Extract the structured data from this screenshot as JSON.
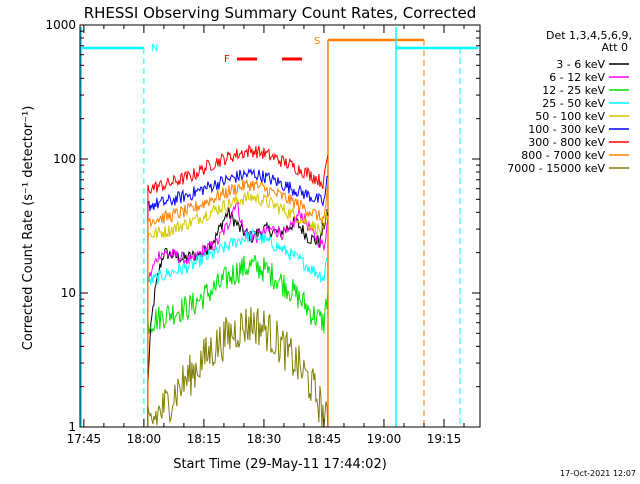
{
  "chart_data": {
    "type": "line",
    "title": "RHESSI Observing Summary Count Rates, Corrected",
    "xlabel": "Start Time (29-May-11 17:44:02)",
    "ylabel": "Corrected Count Rate (s⁻¹ detector⁻¹)",
    "x_scale": "time",
    "y_scale": "log",
    "xlim": [
      "17:44:02",
      "19:24:00"
    ],
    "ylim": [
      1,
      1000
    ],
    "x_ticks": [
      "17:45",
      "18:00",
      "18:15",
      "18:30",
      "18:45",
      "19:00",
      "19:15"
    ],
    "y_ticks": [
      "1",
      "10",
      "100",
      "1000"
    ],
    "legend": {
      "position": "right",
      "header": [
        "Det 1,3,4,5,6,9,",
        "Att 0"
      ]
    },
    "annotations": {
      "night_label": "N",
      "flare_label": "F",
      "saa_label": "S"
    },
    "footer_text": "17-Oct-2021 12:07",
    "series": [
      {
        "name": "3 - 6 keV",
        "color": "#000000",
        "x": [
          "18:01",
          "18:05",
          "18:10",
          "18:15",
          "18:18",
          "18:21",
          "18:24",
          "18:27",
          "18:30",
          "18:34",
          "18:38",
          "18:41",
          "18:44",
          "18:46"
        ],
        "y": [
          2,
          20,
          18,
          20,
          26,
          40,
          30,
          26,
          30,
          28,
          34,
          26,
          24,
          40
        ]
      },
      {
        "name": "6 - 12 keV",
        "color": "#ff00ff",
        "x": [
          "18:01",
          "18:04",
          "18:08",
          "18:12",
          "18:15",
          "18:18",
          "18:21",
          "18:23",
          "18:25",
          "18:28",
          "18:32",
          "18:36",
          "18:39",
          "18:42",
          "18:45",
          "18:46"
        ],
        "y": [
          12,
          20,
          19,
          17,
          21,
          23,
          32,
          48,
          28,
          26,
          30,
          27,
          40,
          28,
          22,
          35
        ]
      },
      {
        "name": "12 - 25 keV",
        "color": "#00e000",
        "x": [
          "18:01",
          "18:06",
          "18:12",
          "18:18",
          "18:24",
          "18:27",
          "18:30",
          "18:36",
          "18:42",
          "18:45",
          "18:46"
        ],
        "y": [
          6,
          7,
          8,
          11,
          15,
          16,
          15,
          11,
          7,
          6,
          10
        ]
      },
      {
        "name": "25 - 50 keV",
        "color": "#00ffff",
        "x": [
          "18:01",
          "18:06",
          "18:12",
          "18:18",
          "18:24",
          "18:27",
          "18:30",
          "18:36",
          "18:42",
          "18:45",
          "18:46"
        ],
        "y": [
          12,
          14,
          16,
          20,
          25,
          27,
          25,
          20,
          15,
          13,
          20
        ]
      },
      {
        "name": "50 - 100 keV",
        "color": "#d4c800",
        "x": [
          "18:01",
          "18:06",
          "18:12",
          "18:18",
          "18:24",
          "18:27",
          "18:30",
          "18:36",
          "18:42",
          "18:45",
          "18:46"
        ],
        "y": [
          27,
          29,
          34,
          42,
          50,
          52,
          49,
          40,
          32,
          28,
          40
        ]
      },
      {
        "name": "100 - 300 keV",
        "color": "#0000ff",
        "x": [
          "18:01",
          "18:06",
          "18:12",
          "18:18",
          "18:24",
          "18:27",
          "18:30",
          "18:36",
          "18:42",
          "18:45",
          "18:46"
        ],
        "y": [
          45,
          48,
          55,
          65,
          75,
          78,
          74,
          62,
          52,
          47,
          75
        ]
      },
      {
        "name": "300 - 800 keV",
        "color": "#ff0000",
        "x": [
          "18:01",
          "18:06",
          "18:12",
          "18:18",
          "18:24",
          "18:27",
          "18:30",
          "18:36",
          "18:42",
          "18:45",
          "18:46"
        ],
        "y": [
          60,
          65,
          75,
          95,
          110,
          116,
          110,
          92,
          75,
          66,
          110
        ]
      },
      {
        "name": "800 - 7000 keV",
        "color": "#ff8000",
        "x": [
          "18:01",
          "18:06",
          "18:12",
          "18:18",
          "18:24",
          "18:27",
          "18:30",
          "18:36",
          "18:42",
          "18:45",
          "18:46"
        ],
        "y": [
          35,
          37,
          42,
          52,
          62,
          65,
          60,
          50,
          40,
          35,
          60
        ]
      },
      {
        "name": "7000 - 15000 keV",
        "color": "#808000",
        "x": [
          "18:01",
          "18:06",
          "18:12",
          "18:18",
          "18:24",
          "18:27",
          "18:30",
          "18:36",
          "18:42",
          "18:45",
          "18:46"
        ],
        "y": [
          1,
          1.5,
          2.5,
          4,
          5.5,
          6,
          5.5,
          3.5,
          2,
          1.2,
          1
        ]
      }
    ]
  }
}
